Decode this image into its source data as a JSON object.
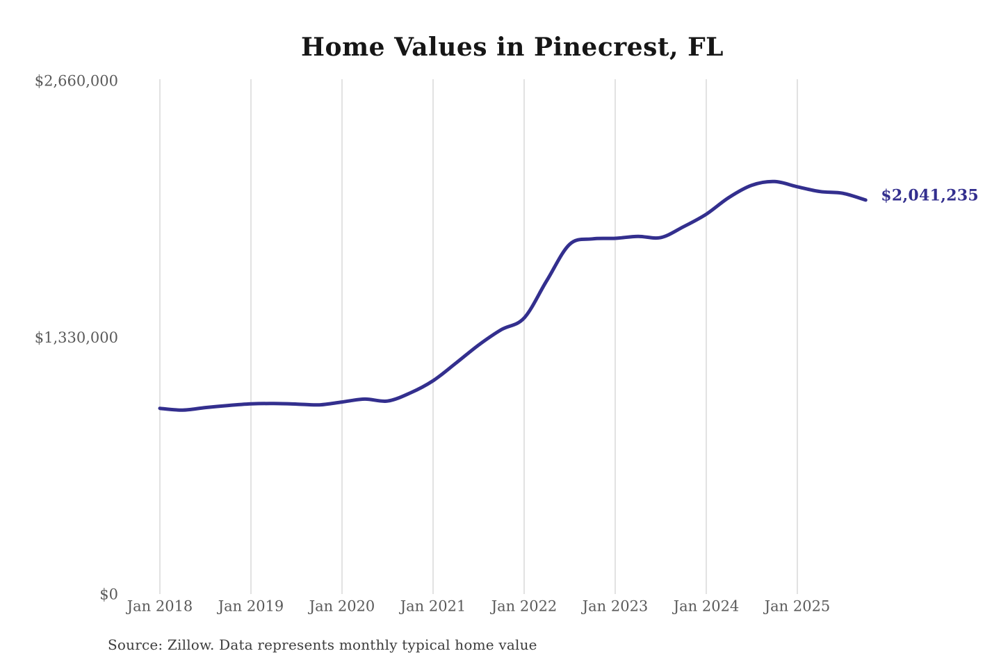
{
  "figure": {
    "title": "Home Values in Pinecrest, FL",
    "source_note": "Source: Zillow. Data represents monthly typical home value",
    "current_value_label": "$2,041,235",
    "colors": {
      "line": "#332F8E",
      "grid": "#c5c5c5",
      "axis_label": "#5a5a5a",
      "title": "#161616",
      "source": "#3c3c3c",
      "current_value_label": "#332F8E",
      "background": "#ffffff"
    }
  },
  "chart_data": {
    "type": "line",
    "title": "Home Values in Pinecrest, FL",
    "xlabel": "",
    "ylabel": "",
    "grid": "vertical-only",
    "legend": "none",
    "ylim": [
      0,
      2660000
    ],
    "yticks": [
      {
        "value": 0,
        "label": "$0"
      },
      {
        "value": 1330000,
        "label": "$1,330,000"
      },
      {
        "value": 2660000,
        "label": "$2,660,000"
      }
    ],
    "xticks": [
      {
        "value": "2018-01",
        "label": "Jan 2018"
      },
      {
        "value": "2019-01",
        "label": "Jan 2019"
      },
      {
        "value": "2020-01",
        "label": "Jan 2020"
      },
      {
        "value": "2021-01",
        "label": "Jan 2021"
      },
      {
        "value": "2022-01",
        "label": "Jan 2022"
      },
      {
        "value": "2023-01",
        "label": "Jan 2023"
      },
      {
        "value": "2024-01",
        "label": "Jan 2024"
      },
      {
        "value": "2025-01",
        "label": "Jan 2025"
      }
    ],
    "series": [
      {
        "name": "Monthly typical home value",
        "points": [
          [
            "2018-01",
            962000
          ],
          [
            "2018-04",
            953000
          ],
          [
            "2018-07",
            966000
          ],
          [
            "2018-10",
            977000
          ],
          [
            "2019-01",
            985000
          ],
          [
            "2019-04",
            987000
          ],
          [
            "2019-07",
            984000
          ],
          [
            "2019-10",
            980000
          ],
          [
            "2020-01",
            995000
          ],
          [
            "2020-04",
            1010000
          ],
          [
            "2020-07",
            1000000
          ],
          [
            "2020-10",
            1042000
          ],
          [
            "2021-01",
            1105000
          ],
          [
            "2021-04",
            1196000
          ],
          [
            "2021-07",
            1290000
          ],
          [
            "2021-10",
            1370000
          ],
          [
            "2022-01",
            1430000
          ],
          [
            "2022-04",
            1625000
          ],
          [
            "2022-07",
            1812000
          ],
          [
            "2022-10",
            1840000
          ],
          [
            "2023-01",
            1843000
          ],
          [
            "2023-04",
            1853000
          ],
          [
            "2023-07",
            1847000
          ],
          [
            "2023-10",
            1903000
          ],
          [
            "2024-01",
            1968000
          ],
          [
            "2024-04",
            2055000
          ],
          [
            "2024-07",
            2118000
          ],
          [
            "2024-10",
            2137000
          ],
          [
            "2025-01",
            2110000
          ],
          [
            "2025-04",
            2085000
          ],
          [
            "2025-07",
            2076000
          ],
          [
            "2025-10",
            2041235
          ]
        ]
      }
    ],
    "annotations": [
      {
        "text": "$2,041,235",
        "position": "right-of-last-point"
      }
    ],
    "source": "Source: Zillow. Data represents monthly typical home value"
  }
}
